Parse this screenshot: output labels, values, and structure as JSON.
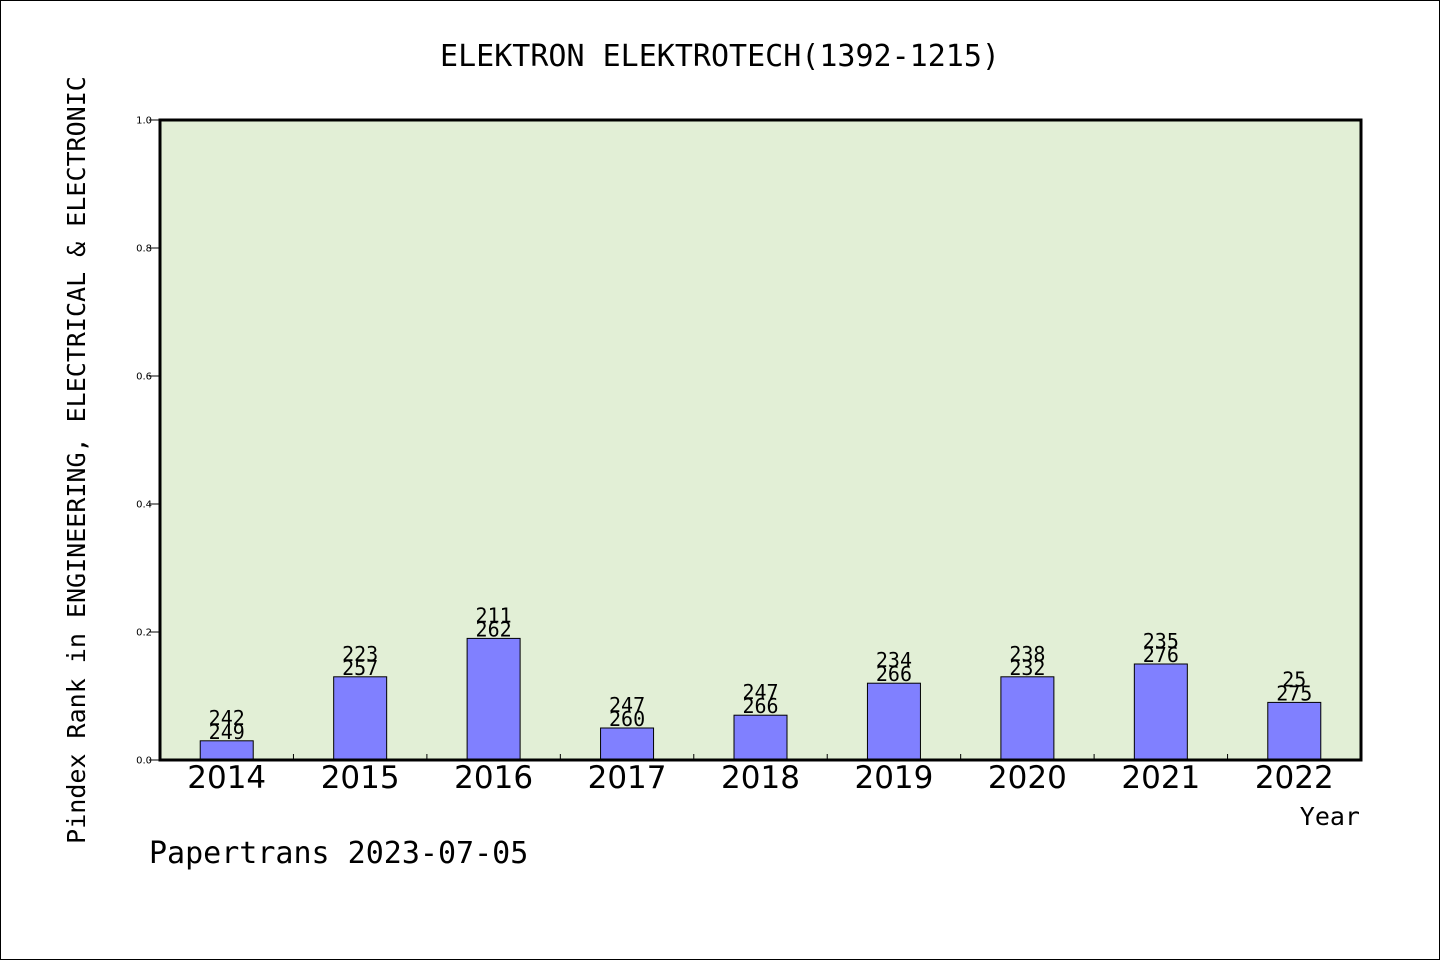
{
  "chart_data": {
    "type": "bar",
    "title": "ELEKTRON ELEKTROTECH(1392-1215)",
    "xlabel": "Year",
    "ylabel": "Pindex Rank in ENGINEERING, ELECTRICAL & ELECTRONIC",
    "categories": [
      "2014",
      "2015",
      "2016",
      "2017",
      "2018",
      "2019",
      "2020",
      "2021",
      "2022"
    ],
    "values": [
      0.03,
      0.13,
      0.19,
      0.05,
      0.07,
      0.12,
      0.13,
      0.15,
      0.09
    ],
    "label_top": [
      "242",
      "223",
      "211",
      "247",
      "247",
      "234",
      "238",
      "235",
      "25"
    ],
    "label_bottom": [
      "249",
      "257",
      "262",
      "260",
      "266",
      "266",
      "232",
      "276",
      "275"
    ],
    "ylim": [
      0,
      1.0
    ],
    "yticks": [
      "0.0",
      "0.2",
      "0.4",
      "0.6",
      "0.8",
      "1.0"
    ],
    "grid": false,
    "colors": {
      "plot_background": "#e2efd6",
      "bar_fill": "#8080ff",
      "bar_stroke": "#000000"
    }
  },
  "footer": {
    "credit": "Papertrans 2023-07-05"
  }
}
